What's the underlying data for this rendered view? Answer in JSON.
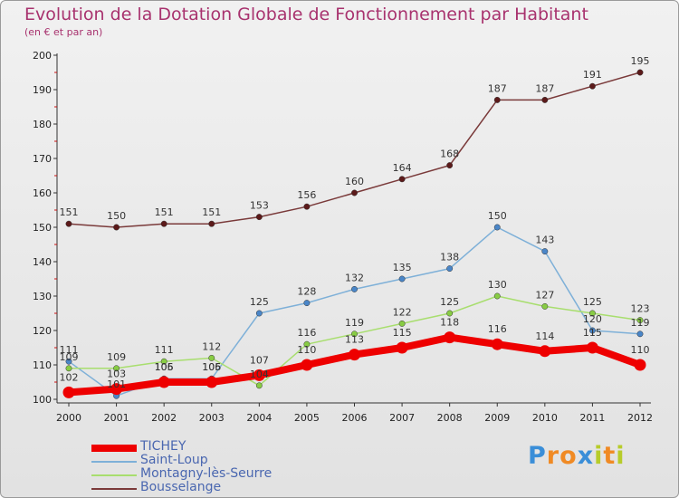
{
  "header": {
    "title": "Evolution de la Dotation Globale de Fonctionnement par Habitant",
    "subtitle": "(en € et par an)"
  },
  "logo": {
    "text": "Proxiti",
    "letters": [
      {
        "ch": "P",
        "color": "#3a8ed8"
      },
      {
        "ch": "r",
        "color": "#f08a24"
      },
      {
        "ch": "o",
        "color": "#f08a24"
      },
      {
        "ch": "x",
        "color": "#3a8ed8"
      },
      {
        "ch": "i",
        "color": "#b7cc2a"
      },
      {
        "ch": "t",
        "color": "#f08a24"
      },
      {
        "ch": "i",
        "color": "#b7cc2a"
      }
    ]
  },
  "chart_data": {
    "type": "line",
    "title": "Evolution de la Dotation Globale de Fonctionnement par Habitant",
    "ylabel": "(en € et par an)",
    "xlabel": "",
    "x": [
      2000,
      2001,
      2002,
      2003,
      2004,
      2005,
      2006,
      2007,
      2008,
      2009,
      2010,
      2011,
      2012
    ],
    "ylim": [
      100,
      200
    ],
    "yticks": [
      100,
      110,
      120,
      130,
      140,
      150,
      160,
      170,
      180,
      190,
      200
    ],
    "grid": false,
    "legend_position": "bottom-left",
    "series": [
      {
        "name": "TICHEY",
        "values": [
          102,
          103,
          105,
          105,
          107,
          110,
          113,
          115,
          118,
          116,
          114,
          115,
          110
        ],
        "color": "#ee0000",
        "line_color": "#ee0000",
        "emphasis": true
      },
      {
        "name": "Saint-Loup",
        "values": [
          111,
          101,
          106,
          106,
          125,
          128,
          132,
          135,
          138,
          150,
          143,
          120,
          119
        ],
        "color": "#4a86c8",
        "line_color": "#7eb0d8",
        "emphasis": false
      },
      {
        "name": "Montagny-lès-Seurre",
        "values": [
          109,
          109,
          111,
          112,
          104,
          116,
          119,
          122,
          125,
          130,
          127,
          125,
          123
        ],
        "color": "#88cc44",
        "line_color": "#a8de6e",
        "emphasis": false
      },
      {
        "name": "Bousselange",
        "values": [
          151,
          150,
          151,
          151,
          153,
          156,
          160,
          164,
          168,
          187,
          187,
          191,
          195
        ],
        "color": "#5c1a1a",
        "line_color": "#7a3a3a",
        "emphasis": false
      }
    ]
  }
}
